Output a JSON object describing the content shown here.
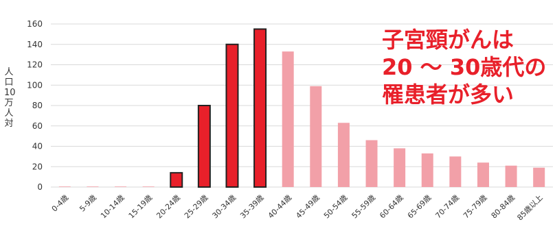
{
  "chart_data": {
    "type": "bar",
    "categories": [
      "0-4歳",
      "5-9歳",
      "10-14歳",
      "15-19歳",
      "20-24歳",
      "25-29歳",
      "30-34歳",
      "35-39歳",
      "40-44歳",
      "45-49歳",
      "50-54歳",
      "55-59歳",
      "60-64歳",
      "65-69歳",
      "70-74歳",
      "75-79歳",
      "80-84歳",
      "85歳以上"
    ],
    "values": [
      0,
      0,
      0,
      0.5,
      14,
      80,
      140,
      155,
      133,
      99,
      63,
      46,
      38,
      33,
      30,
      24,
      21,
      19
    ],
    "highlight": [
      false,
      false,
      false,
      false,
      true,
      true,
      true,
      true,
      false,
      false,
      false,
      false,
      false,
      false,
      false,
      false,
      false,
      false
    ],
    "ylabel": "人口10万人対",
    "ylim": [
      0,
      160
    ],
    "yticks": [
      0,
      20,
      40,
      60,
      80,
      100,
      120,
      140,
      160
    ],
    "grid": true,
    "colors": {
      "highlight": "#e8202a",
      "normal": "#f2a0a8",
      "outline": "#222222"
    }
  },
  "annotation": {
    "lines": [
      "子宮頸がんは",
      "20 ～ 30歳代の",
      "罹患者が多い"
    ],
    "color": "#e8202a"
  }
}
